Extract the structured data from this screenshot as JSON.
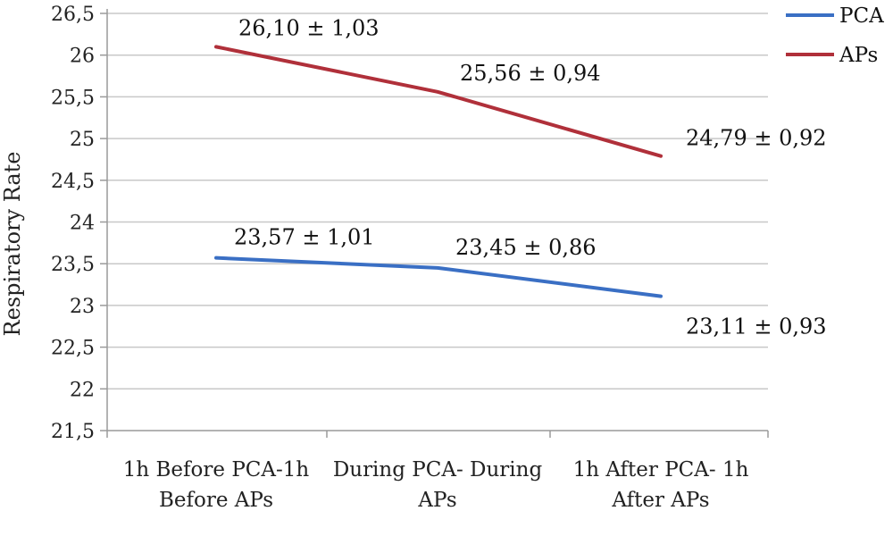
{
  "chart_data": {
    "type": "line",
    "title": "",
    "ylabel": "Respiratory Rate",
    "xlabel": "",
    "categories": [
      [
        "1h Before PCA-1h",
        "Before APs"
      ],
      [
        "During PCA- During",
        "APs"
      ],
      [
        "1h After PCA- 1h",
        "After APs"
      ]
    ],
    "ylim": [
      21.5,
      26.5
    ],
    "ystep": 0.5,
    "ytick_labels": [
      "21,5",
      "22",
      "22,5",
      "23",
      "23,5",
      "24",
      "24,5",
      "25",
      "25,5",
      "26",
      "26,5"
    ],
    "grid": true,
    "legend_position": "top-right",
    "series": [
      {
        "name": "PCA",
        "color": "#3a6fc4",
        "values": [
          23.57,
          23.45,
          23.11
        ],
        "labels": [
          "23,57 ± 1,01",
          "23,45 ± 0,86",
          "23,11 ± 0,93"
        ]
      },
      {
        "name": "APs",
        "color": "#b0303a",
        "values": [
          26.1,
          25.56,
          24.79
        ],
        "labels": [
          "26,10 ± 1,03",
          "25,56 ± 0,94",
          "24,79 ± 0,92"
        ]
      }
    ]
  }
}
